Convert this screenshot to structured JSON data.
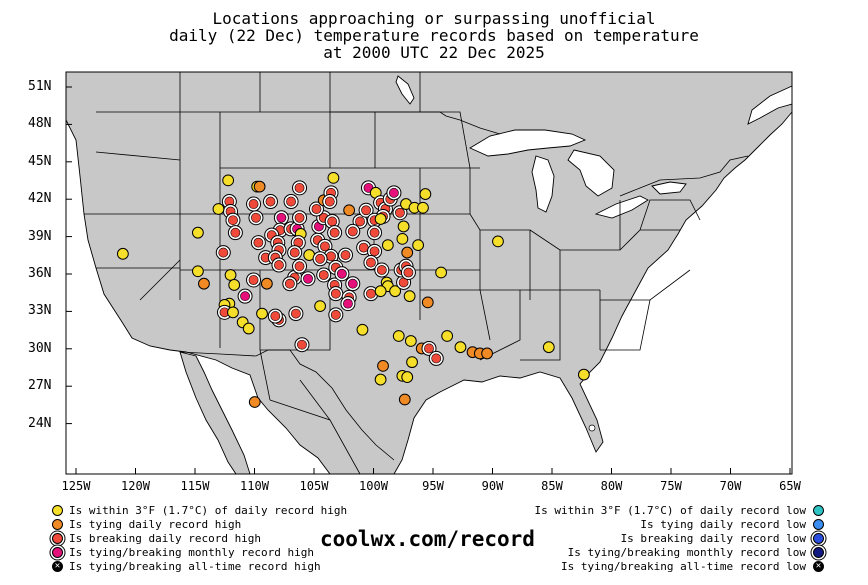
{
  "title_lines": [
    "Locations approaching or surpassing unofficial",
    "daily (22 Dec) temperature records based on temperature",
    "at 2000 UTC 22 Dec 2025"
  ],
  "lat_labels": [
    "51N",
    "48N",
    "45N",
    "42N",
    "39N",
    "36N",
    "33N",
    "30N",
    "27N",
    "24N"
  ],
  "lon_labels": [
    "125W",
    "120W",
    "115W",
    "110W",
    "105W",
    "100W",
    "95W",
    "90W",
    "85W",
    "80W",
    "75W",
    "70W",
    "65W"
  ],
  "legend_left": [
    {
      "label": "Is within 3°F (1.7°C) of daily record high",
      "color": "#f5df2a",
      "style": "plain"
    },
    {
      "label": "Is tying daily record high",
      "color": "#f08a24",
      "style": "plain"
    },
    {
      "label": "Is breaking daily record high",
      "color": "#ef4a3a",
      "style": "ring"
    },
    {
      "label": "Is tying/breaking monthly record high",
      "color": "#e5107a",
      "style": "ring"
    },
    {
      "label": "Is tying/breaking all-time record high",
      "color": "#000000",
      "style": "x"
    }
  ],
  "legend_right": [
    {
      "label": "Is within 3°F (1.7°C) of daily record low",
      "color": "#2ec4c4",
      "style": "plain"
    },
    {
      "label": "Is tying daily record low",
      "color": "#3a8ef0",
      "style": "plain"
    },
    {
      "label": "Is breaking daily record low",
      "color": "#2a4fe0",
      "style": "ring"
    },
    {
      "label": "Is tying/breaking monthly record low",
      "color": "#101a80",
      "style": "ring"
    },
    {
      "label": "Is tying/breaking all-time record low",
      "color": "#000000",
      "style": "x"
    }
  ],
  "brand": "coolwx.com/record",
  "colors": {
    "land": "#c8c8c8",
    "water": "#ffffff",
    "within": "#f5df2a",
    "tying": "#f08a24",
    "breaking": "#ef4a3a",
    "monthly": "#e5107a"
  },
  "stations": [
    {
      "lon": -120.8,
      "lat": 37.6,
      "cat": "within"
    },
    {
      "lon": -114.6,
      "lat": 39.3,
      "cat": "within"
    },
    {
      "lon": -114.6,
      "lat": 36.2,
      "cat": "within"
    },
    {
      "lon": -114.1,
      "lat": 35.2,
      "cat": "tying"
    },
    {
      "lon": -112.1,
      "lat": 43.5,
      "cat": "within"
    },
    {
      "lon": -112.0,
      "lat": 41.8,
      "cat": "breaking"
    },
    {
      "lon": -111.9,
      "lat": 41.0,
      "cat": "breaking"
    },
    {
      "lon": -111.7,
      "lat": 40.3,
      "cat": "breaking"
    },
    {
      "lon": -112.9,
      "lat": 41.2,
      "cat": "within"
    },
    {
      "lon": -111.5,
      "lat": 39.3,
      "cat": "breaking"
    },
    {
      "lon": -112.5,
      "lat": 37.7,
      "cat": "breaking"
    },
    {
      "lon": -111.9,
      "lat": 35.9,
      "cat": "within"
    },
    {
      "lon": -111.6,
      "lat": 35.1,
      "cat": "within"
    },
    {
      "lon": -112.0,
      "lat": 33.6,
      "cat": "within"
    },
    {
      "lon": -112.4,
      "lat": 33.5,
      "cat": "within"
    },
    {
      "lon": -112.4,
      "lat": 32.9,
      "cat": "breaking"
    },
    {
      "lon": -111.7,
      "lat": 32.9,
      "cat": "within"
    },
    {
      "lon": -110.9,
      "lat": 32.1,
      "cat": "within"
    },
    {
      "lon": -110.4,
      "lat": 31.6,
      "cat": "within"
    },
    {
      "lon": -109.3,
      "lat": 32.8,
      "cat": "within"
    },
    {
      "lon": -110.7,
      "lat": 34.2,
      "cat": "monthly"
    },
    {
      "lon": -110.0,
      "lat": 35.5,
      "cat": "breaking"
    },
    {
      "lon": -108.9,
      "lat": 35.2,
      "cat": "tying"
    },
    {
      "lon": -109.0,
      "lat": 37.3,
      "cat": "breaking"
    },
    {
      "lon": -109.6,
      "lat": 38.5,
      "cat": "breaking"
    },
    {
      "lon": -109.8,
      "lat": 40.5,
      "cat": "breaking"
    },
    {
      "lon": -110.0,
      "lat": 41.6,
      "cat": "breaking"
    },
    {
      "lon": -108.6,
      "lat": 41.8,
      "cat": "breaking"
    },
    {
      "lon": -109.7,
      "lat": 43.0,
      "cat": "within"
    },
    {
      "lon": -109.5,
      "lat": 43.0,
      "cat": "tying"
    },
    {
      "lon": -107.7,
      "lat": 40.5,
      "cat": "monthly"
    },
    {
      "lon": -106.9,
      "lat": 41.8,
      "cat": "breaking"
    },
    {
      "lon": -106.2,
      "lat": 42.9,
      "cat": "breaking"
    },
    {
      "lon": -107.8,
      "lat": 39.5,
      "cat": "breaking"
    },
    {
      "lon": -108.5,
      "lat": 39.1,
      "cat": "breaking"
    },
    {
      "lon": -108.0,
      "lat": 38.5,
      "cat": "breaking"
    },
    {
      "lon": -107.9,
      "lat": 37.9,
      "cat": "breaking"
    },
    {
      "lon": -108.2,
      "lat": 37.3,
      "cat": "breaking"
    },
    {
      "lon": -107.9,
      "lat": 36.7,
      "cat": "breaking"
    },
    {
      "lon": -106.9,
      "lat": 39.6,
      "cat": "breaking"
    },
    {
      "lon": -106.4,
      "lat": 39.6,
      "cat": "monthly"
    },
    {
      "lon": -106.2,
      "lat": 40.5,
      "cat": "breaking"
    },
    {
      "lon": -106.1,
      "lat": 39.2,
      "cat": "within"
    },
    {
      "lon": -106.3,
      "lat": 38.5,
      "cat": "breaking"
    },
    {
      "lon": -106.6,
      "lat": 37.7,
      "cat": "breaking"
    },
    {
      "lon": -106.6,
      "lat": 35.7,
      "cat": "breaking"
    },
    {
      "lon": -105.5,
      "lat": 35.6,
      "cat": "monthly"
    },
    {
      "lon": -106.2,
      "lat": 36.6,
      "cat": "breaking"
    },
    {
      "lon": -105.4,
      "lat": 37.5,
      "cat": "within"
    },
    {
      "lon": -104.7,
      "lat": 38.7,
      "cat": "breaking"
    },
    {
      "lon": -104.6,
      "lat": 39.8,
      "cat": "monthly"
    },
    {
      "lon": -104.2,
      "lat": 40.5,
      "cat": "breaking"
    },
    {
      "lon": -104.8,
      "lat": 41.2,
      "cat": "breaking"
    },
    {
      "lon": -104.2,
      "lat": 41.9,
      "cat": "tying"
    },
    {
      "lon": -103.6,
      "lat": 42.5,
      "cat": "breaking"
    },
    {
      "lon": -103.4,
      "lat": 43.7,
      "cat": "within"
    },
    {
      "lon": -103.7,
      "lat": 41.8,
      "cat": "breaking"
    },
    {
      "lon": -103.5,
      "lat": 40.2,
      "cat": "breaking"
    },
    {
      "lon": -103.3,
      "lat": 39.3,
      "cat": "breaking"
    },
    {
      "lon": -104.1,
      "lat": 38.2,
      "cat": "breaking"
    },
    {
      "lon": -103.6,
      "lat": 37.4,
      "cat": "breaking"
    },
    {
      "lon": -104.5,
      "lat": 37.2,
      "cat": "breaking"
    },
    {
      "lon": -103.2,
      "lat": 36.5,
      "cat": "breaking"
    },
    {
      "lon": -104.2,
      "lat": 35.9,
      "cat": "breaking"
    },
    {
      "lon": -103.3,
      "lat": 35.1,
      "cat": "breaking"
    },
    {
      "lon": -103.2,
      "lat": 34.4,
      "cat": "breaking"
    },
    {
      "lon": -104.5,
      "lat": 33.4,
      "cat": "within"
    },
    {
      "lon": -103.2,
      "lat": 32.7,
      "cat": "breaking"
    },
    {
      "lon": -106.5,
      "lat": 32.8,
      "cat": "breaking"
    },
    {
      "lon": -107.9,
      "lat": 32.3,
      "cat": "breaking"
    },
    {
      "lon": -108.2,
      "lat": 32.6,
      "cat": "breaking"
    },
    {
      "lon": -107.0,
      "lat": 35.2,
      "cat": "breaking"
    },
    {
      "lon": -102.1,
      "lat": 41.1,
      "cat": "tying"
    },
    {
      "lon": -101.2,
      "lat": 40.2,
      "cat": "breaking"
    },
    {
      "lon": -101.8,
      "lat": 39.4,
      "cat": "breaking"
    },
    {
      "lon": -102.4,
      "lat": 37.5,
      "cat": "breaking"
    },
    {
      "lon": -102.7,
      "lat": 36.0,
      "cat": "monthly"
    },
    {
      "lon": -101.8,
      "lat": 35.2,
      "cat": "monthly"
    },
    {
      "lon": -102.1,
      "lat": 34.1,
      "cat": "breaking"
    },
    {
      "lon": -102.2,
      "lat": 33.6,
      "cat": "monthly"
    },
    {
      "lon": -100.7,
      "lat": 41.1,
      "cat": "breaking"
    },
    {
      "lon": -100.5,
      "lat": 42.9,
      "cat": "monthly"
    },
    {
      "lon": -99.9,
      "lat": 42.5,
      "cat": "within"
    },
    {
      "lon": -99.5,
      "lat": 41.7,
      "cat": "breaking"
    },
    {
      "lon": -99.1,
      "lat": 41.2,
      "cat": "breaking"
    },
    {
      "lon": -98.7,
      "lat": 42.0,
      "cat": "breaking"
    },
    {
      "lon": -98.4,
      "lat": 42.5,
      "cat": "monthly"
    },
    {
      "lon": -99.3,
      "lat": 40.6,
      "cat": "breaking"
    },
    {
      "lon": -100.0,
      "lat": 40.3,
      "cat": "breaking"
    },
    {
      "lon": -99.5,
      "lat": 40.4,
      "cat": "within"
    },
    {
      "lon": -100.0,
      "lat": 39.3,
      "cat": "breaking"
    },
    {
      "lon": -100.9,
      "lat": 38.1,
      "cat": "breaking"
    },
    {
      "lon": -100.0,
      "lat": 37.8,
      "cat": "breaking"
    },
    {
      "lon": -100.3,
      "lat": 36.9,
      "cat": "breaking"
    },
    {
      "lon": -99.4,
      "lat": 36.3,
      "cat": "breaking"
    },
    {
      "lon": -99.0,
      "lat": 35.3,
      "cat": "within"
    },
    {
      "lon": -98.9,
      "lat": 35.0,
      "cat": "within"
    },
    {
      "lon": -100.3,
      "lat": 34.4,
      "cat": "breaking"
    },
    {
      "lon": -99.5,
      "lat": 34.6,
      "cat": "within"
    },
    {
      "lon": -98.3,
      "lat": 34.6,
      "cat": "within"
    },
    {
      "lon": -97.6,
      "lat": 35.3,
      "cat": "breaking"
    },
    {
      "lon": -97.8,
      "lat": 36.3,
      "cat": "breaking"
    },
    {
      "lon": -97.4,
      "lat": 36.6,
      "cat": "breaking"
    },
    {
      "lon": -97.2,
      "lat": 36.1,
      "cat": "breaking"
    },
    {
      "lon": -97.3,
      "lat": 37.7,
      "cat": "tying"
    },
    {
      "lon": -98.9,
      "lat": 38.3,
      "cat": "within"
    },
    {
      "lon": -97.7,
      "lat": 38.8,
      "cat": "within"
    },
    {
      "lon": -97.6,
      "lat": 39.8,
      "cat": "within"
    },
    {
      "lon": -97.9,
      "lat": 40.9,
      "cat": "breaking"
    },
    {
      "lon": -97.4,
      "lat": 41.6,
      "cat": "within"
    },
    {
      "lon": -96.7,
      "lat": 41.3,
      "cat": "within"
    },
    {
      "lon": -96.0,
      "lat": 41.3,
      "cat": "within"
    },
    {
      "lon": -95.8,
      "lat": 42.4,
      "cat": "within"
    },
    {
      "lon": -96.4,
      "lat": 38.3,
      "cat": "within"
    },
    {
      "lon": -97.1,
      "lat": 34.2,
      "cat": "within"
    },
    {
      "lon": -95.6,
      "lat": 33.7,
      "cat": "tying"
    },
    {
      "lon": -94.5,
      "lat": 36.1,
      "cat": "within"
    },
    {
      "lon": -98.0,
      "lat": 31.0,
      "cat": "within"
    },
    {
      "lon": -97.0,
      "lat": 30.6,
      "cat": "within"
    },
    {
      "lon": -96.1,
      "lat": 30.0,
      "cat": "tying"
    },
    {
      "lon": -95.5,
      "lat": 30.0,
      "cat": "breaking"
    },
    {
      "lon": -94.9,
      "lat": 29.2,
      "cat": "breaking"
    },
    {
      "lon": -96.9,
      "lat": 28.9,
      "cat": "within"
    },
    {
      "lon": -97.7,
      "lat": 27.8,
      "cat": "within"
    },
    {
      "lon": -97.3,
      "lat": 27.7,
      "cat": "within"
    },
    {
      "lon": -99.3,
      "lat": 28.6,
      "cat": "tying"
    },
    {
      "lon": -99.5,
      "lat": 27.5,
      "cat": "within"
    },
    {
      "lon": -97.5,
      "lat": 25.9,
      "cat": "tying"
    },
    {
      "lon": -109.9,
      "lat": 25.7,
      "cat": "tying"
    },
    {
      "lon": -106.0,
      "lat": 30.3,
      "cat": "breaking"
    },
    {
      "lon": -94.0,
      "lat": 31.0,
      "cat": "within"
    },
    {
      "lon": -92.9,
      "lat": 30.1,
      "cat": "within"
    },
    {
      "lon": -91.9,
      "lat": 29.7,
      "cat": "tying"
    },
    {
      "lon": -91.3,
      "lat": 29.6,
      "cat": "tying"
    },
    {
      "lon": -90.7,
      "lat": 29.6,
      "cat": "tying"
    },
    {
      "lon": -89.8,
      "lat": 38.6,
      "cat": "within"
    },
    {
      "lon": -85.6,
      "lat": 30.1,
      "cat": "within"
    },
    {
      "lon": -82.7,
      "lat": 27.9,
      "cat": "within"
    },
    {
      "lon": -101.0,
      "lat": 31.5,
      "cat": "within"
    }
  ]
}
